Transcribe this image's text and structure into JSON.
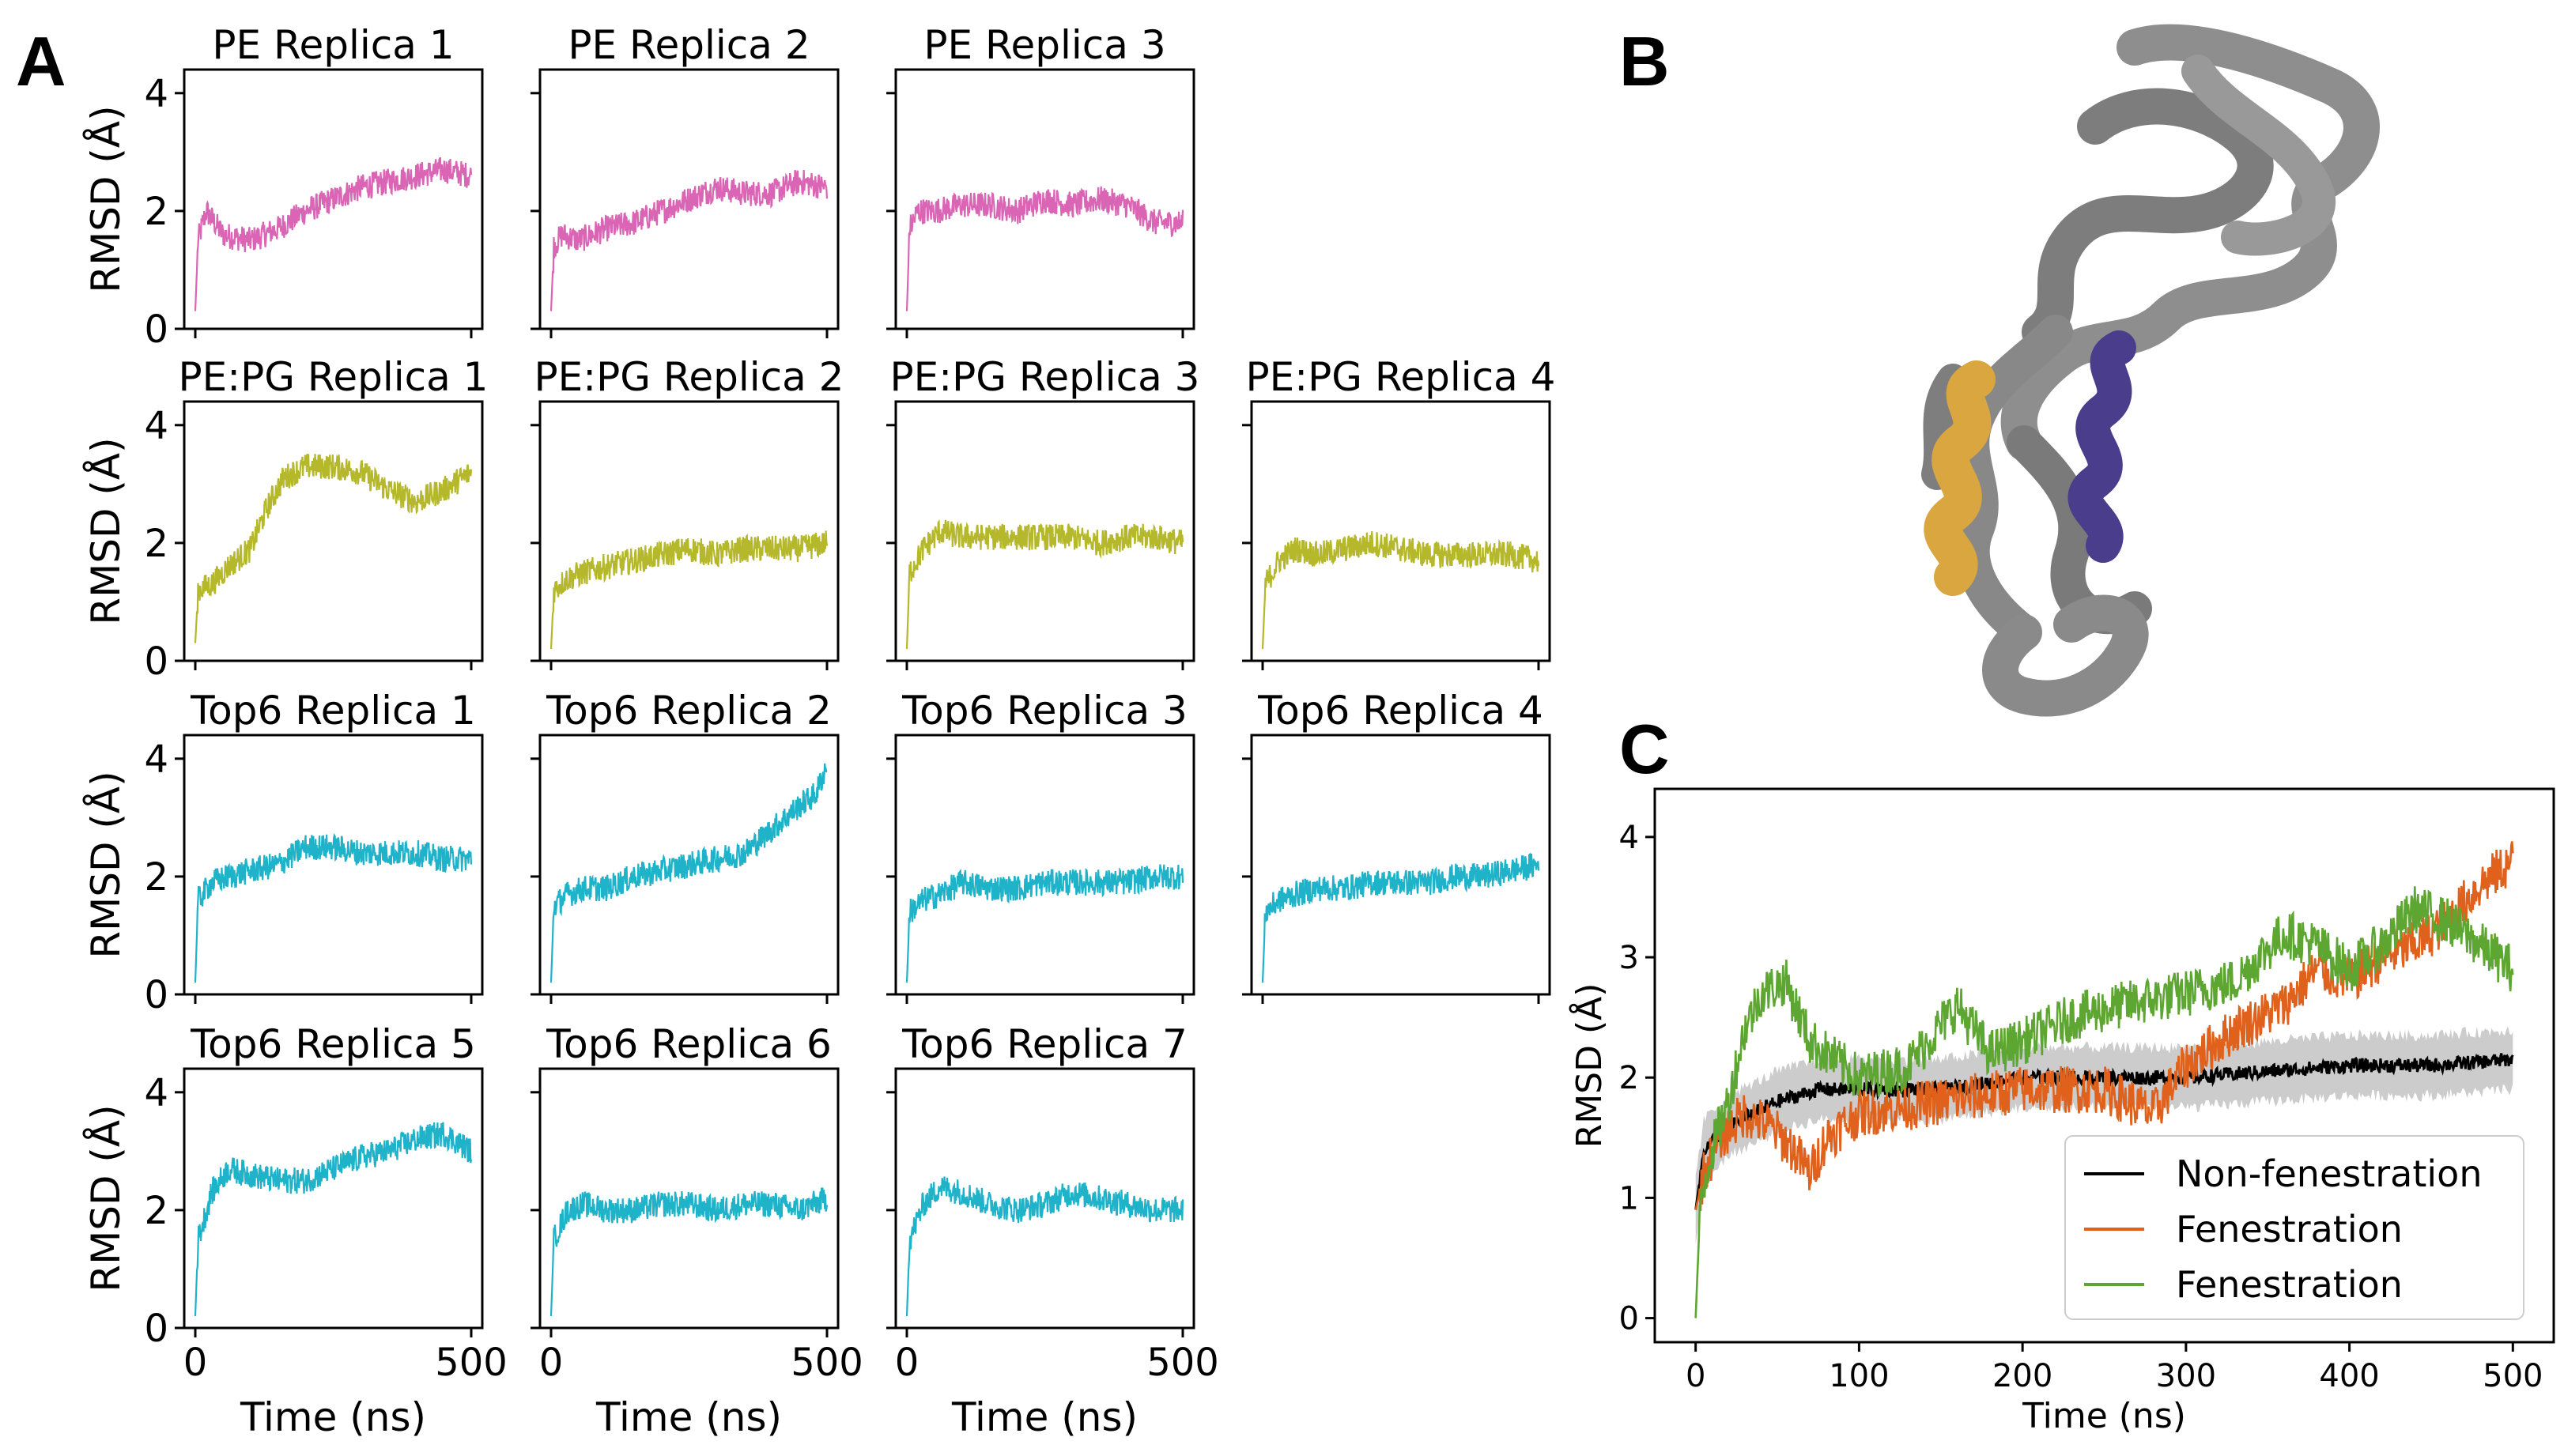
{
  "panel_labels": {
    "a": "A",
    "b": "B",
    "c": "C"
  },
  "colors": {
    "PE": "#d965b4",
    "PEPG": "#b5b82a",
    "Top6": "#1fb3c9",
    "nonfen": "#000000",
    "fen1": "#e0611c",
    "fen2": "#5ea632",
    "band": "#bbbbbb",
    "protein_grey": "#8a8a8a",
    "helix_gold": "#d9a640",
    "helix_purple": "#4a3d8c"
  },
  "panel_b": {
    "icon": "protein-structure-cartoon"
  },
  "chart_data": [
    {
      "type": "line",
      "panel": "A",
      "grid_rows": 4,
      "grid_cols": 4,
      "ylabel": "RMSD (Å)",
      "xlabel": "Time (ns)",
      "xlim": [
        0,
        500
      ],
      "ylim": [
        0,
        4.4
      ],
      "xticks": [
        0,
        500
      ],
      "yticks": [
        0,
        2,
        4
      ],
      "subplots": [
        {
          "title": "PE Replica 1",
          "row": 0,
          "col": 0,
          "group": "PE",
          "series": [
            [
              0,
              0.3
            ],
            [
              5,
              1.5
            ],
            [
              20,
              2.0
            ],
            [
              50,
              1.6
            ],
            [
              100,
              1.5
            ],
            [
              150,
              1.7
            ],
            [
              200,
              2.0
            ],
            [
              250,
              2.2
            ],
            [
              300,
              2.4
            ],
            [
              350,
              2.5
            ],
            [
              400,
              2.6
            ],
            [
              450,
              2.7
            ],
            [
              500,
              2.6
            ]
          ]
        },
        {
          "title": "PE Replica 2",
          "row": 0,
          "col": 1,
          "group": "PE",
          "series": [
            [
              0,
              0.3
            ],
            [
              5,
              1.4
            ],
            [
              20,
              1.6
            ],
            [
              50,
              1.5
            ],
            [
              100,
              1.7
            ],
            [
              150,
              1.8
            ],
            [
              200,
              2.0
            ],
            [
              250,
              2.2
            ],
            [
              300,
              2.4
            ],
            [
              350,
              2.3
            ],
            [
              400,
              2.3
            ],
            [
              450,
              2.5
            ],
            [
              500,
              2.4
            ]
          ]
        },
        {
          "title": "PE Replica 3",
          "row": 0,
          "col": 2,
          "group": "PE",
          "series": [
            [
              0,
              0.3
            ],
            [
              5,
              1.7
            ],
            [
              20,
              2.0
            ],
            [
              50,
              2.0
            ],
            [
              100,
              2.1
            ],
            [
              150,
              2.1
            ],
            [
              200,
              2.0
            ],
            [
              250,
              2.2
            ],
            [
              300,
              2.1
            ],
            [
              350,
              2.2
            ],
            [
              400,
              2.1
            ],
            [
              450,
              1.8
            ],
            [
              500,
              1.8
            ]
          ]
        },
        {
          "title": "PE:PG Replica 1",
          "row": 1,
          "col": 0,
          "group": "PEPG",
          "series": [
            [
              0,
              0.3
            ],
            [
              5,
              1.2
            ],
            [
              30,
              1.3
            ],
            [
              60,
              1.6
            ],
            [
              100,
              1.9
            ],
            [
              130,
              2.6
            ],
            [
              160,
              3.1
            ],
            [
              200,
              3.3
            ],
            [
              250,
              3.3
            ],
            [
              300,
              3.2
            ],
            [
              350,
              2.9
            ],
            [
              400,
              2.7
            ],
            [
              450,
              2.9
            ],
            [
              500,
              3.2
            ]
          ]
        },
        {
          "title": "PE:PG Replica 2",
          "row": 1,
          "col": 1,
          "group": "PEPG",
          "series": [
            [
              0,
              0.2
            ],
            [
              5,
              1.2
            ],
            [
              30,
              1.4
            ],
            [
              60,
              1.5
            ],
            [
              100,
              1.6
            ],
            [
              150,
              1.7
            ],
            [
              200,
              1.8
            ],
            [
              250,
              1.9
            ],
            [
              300,
              1.8
            ],
            [
              350,
              1.9
            ],
            [
              400,
              1.9
            ],
            [
              450,
              1.9
            ],
            [
              500,
              2.0
            ]
          ]
        },
        {
          "title": "PE:PG Replica 3",
          "row": 1,
          "col": 2,
          "group": "PEPG",
          "series": [
            [
              0,
              0.2
            ],
            [
              5,
              1.5
            ],
            [
              30,
              1.9
            ],
            [
              60,
              2.2
            ],
            [
              100,
              2.1
            ],
            [
              150,
              2.1
            ],
            [
              200,
              2.1
            ],
            [
              250,
              2.1
            ],
            [
              300,
              2.1
            ],
            [
              350,
              2.0
            ],
            [
              400,
              2.1
            ],
            [
              450,
              2.1
            ],
            [
              500,
              2.0
            ]
          ]
        },
        {
          "title": "PE:PG Replica 4",
          "row": 1,
          "col": 3,
          "group": "PEPG",
          "series": [
            [
              0,
              0.2
            ],
            [
              5,
              1.3
            ],
            [
              30,
              1.7
            ],
            [
              60,
              1.9
            ],
            [
              100,
              1.8
            ],
            [
              150,
              1.9
            ],
            [
              200,
              2.0
            ],
            [
              250,
              1.9
            ],
            [
              300,
              1.8
            ],
            [
              350,
              1.8
            ],
            [
              400,
              1.8
            ],
            [
              450,
              1.8
            ],
            [
              500,
              1.7
            ]
          ]
        },
        {
          "title": "Top6 Replica 1",
          "row": 2,
          "col": 0,
          "group": "Top6",
          "series": [
            [
              0,
              0.2
            ],
            [
              5,
              1.6
            ],
            [
              30,
              1.9
            ],
            [
              60,
              2.0
            ],
            [
              100,
              2.1
            ],
            [
              150,
              2.2
            ],
            [
              200,
              2.5
            ],
            [
              250,
              2.5
            ],
            [
              300,
              2.4
            ],
            [
              350,
              2.4
            ],
            [
              400,
              2.4
            ],
            [
              450,
              2.3
            ],
            [
              500,
              2.3
            ]
          ]
        },
        {
          "title": "Top6 Replica 2",
          "row": 2,
          "col": 1,
          "group": "Top6",
          "series": [
            [
              0,
              0.2
            ],
            [
              5,
              1.5
            ],
            [
              30,
              1.7
            ],
            [
              60,
              1.8
            ],
            [
              100,
              1.8
            ],
            [
              150,
              2.0
            ],
            [
              200,
              2.1
            ],
            [
              250,
              2.2
            ],
            [
              300,
              2.3
            ],
            [
              350,
              2.4
            ],
            [
              400,
              2.8
            ],
            [
              450,
              3.2
            ],
            [
              480,
              3.4
            ],
            [
              500,
              3.9
            ]
          ]
        },
        {
          "title": "Top6 Replica 3",
          "row": 2,
          "col": 2,
          "group": "Top6",
          "series": [
            [
              0,
              0.2
            ],
            [
              5,
              1.4
            ],
            [
              30,
              1.6
            ],
            [
              60,
              1.7
            ],
            [
              100,
              1.9
            ],
            [
              150,
              1.8
            ],
            [
              200,
              1.8
            ],
            [
              250,
              1.9
            ],
            [
              300,
              1.9
            ],
            [
              350,
              1.9
            ],
            [
              400,
              1.9
            ],
            [
              450,
              2.0
            ],
            [
              500,
              2.0
            ]
          ]
        },
        {
          "title": "Top6 Replica 4",
          "row": 2,
          "col": 3,
          "group": "Top6",
          "series": [
            [
              0,
              0.2
            ],
            [
              5,
              1.4
            ],
            [
              30,
              1.6
            ],
            [
              60,
              1.7
            ],
            [
              100,
              1.8
            ],
            [
              150,
              1.8
            ],
            [
              200,
              1.9
            ],
            [
              250,
              1.9
            ],
            [
              300,
              1.9
            ],
            [
              350,
              2.0
            ],
            [
              400,
              2.0
            ],
            [
              450,
              2.1
            ],
            [
              500,
              2.2
            ]
          ]
        },
        {
          "title": "Top6 Replica 5",
          "row": 3,
          "col": 0,
          "group": "Top6",
          "series": [
            [
              0,
              0.2
            ],
            [
              5,
              1.5
            ],
            [
              30,
              2.3
            ],
            [
              60,
              2.7
            ],
            [
              100,
              2.6
            ],
            [
              150,
              2.5
            ],
            [
              200,
              2.5
            ],
            [
              250,
              2.7
            ],
            [
              300,
              2.9
            ],
            [
              350,
              3.0
            ],
            [
              400,
              3.2
            ],
            [
              450,
              3.3
            ],
            [
              500,
              3.0
            ]
          ]
        },
        {
          "title": "Top6 Replica 6",
          "row": 3,
          "col": 1,
          "group": "Top6",
          "series": [
            [
              0,
              0.2
            ],
            [
              5,
              1.5
            ],
            [
              30,
              2.0
            ],
            [
              60,
              2.1
            ],
            [
              100,
              2.0
            ],
            [
              150,
              2.0
            ],
            [
              200,
              2.1
            ],
            [
              250,
              2.1
            ],
            [
              300,
              2.0
            ],
            [
              350,
              2.1
            ],
            [
              400,
              2.1
            ],
            [
              450,
              2.0
            ],
            [
              500,
              2.2
            ]
          ]
        },
        {
          "title": "Top6 Replica 7",
          "row": 3,
          "col": 2,
          "group": "Top6",
          "series": [
            [
              0,
              0.2
            ],
            [
              5,
              1.5
            ],
            [
              30,
              2.1
            ],
            [
              60,
              2.4
            ],
            [
              100,
              2.3
            ],
            [
              150,
              2.1
            ],
            [
              200,
              2.0
            ],
            [
              250,
              2.1
            ],
            [
              300,
              2.3
            ],
            [
              350,
              2.2
            ],
            [
              400,
              2.1
            ],
            [
              450,
              2.0
            ],
            [
              500,
              2.0
            ]
          ]
        }
      ]
    },
    {
      "type": "line",
      "panel": "C",
      "xlabel": "Time (ns)",
      "ylabel": "RMSD (Å)",
      "xlim": [
        -25,
        525
      ],
      "ylim": [
        -0.2,
        4.4
      ],
      "xticks": [
        0,
        100,
        200,
        300,
        400,
        500
      ],
      "yticks": [
        0,
        1,
        2,
        3,
        4
      ],
      "legend_position": "lower-right",
      "series": [
        {
          "name": "Non-fenestration",
          "key": "nonfen",
          "values": [
            [
              0,
              0.9
            ],
            [
              5,
              1.4
            ],
            [
              20,
              1.6
            ],
            [
              50,
              1.8
            ],
            [
              75,
              1.9
            ],
            [
              100,
              1.9
            ],
            [
              150,
              1.9
            ],
            [
              200,
              2.0
            ],
            [
              250,
              2.0
            ],
            [
              300,
              2.0
            ],
            [
              350,
              2.05
            ],
            [
              400,
              2.1
            ],
            [
              450,
              2.1
            ],
            [
              500,
              2.15
            ]
          ],
          "band": 0.25
        },
        {
          "name": "Fenestration",
          "key": "fen1",
          "values": [
            [
              0,
              0.9
            ],
            [
              5,
              1.2
            ],
            [
              15,
              1.5
            ],
            [
              30,
              1.7
            ],
            [
              45,
              1.6
            ],
            [
              60,
              1.4
            ],
            [
              70,
              1.2
            ],
            [
              80,
              1.5
            ],
            [
              100,
              1.7
            ],
            [
              150,
              1.8
            ],
            [
              200,
              1.9
            ],
            [
              250,
              1.9
            ],
            [
              280,
              1.7
            ],
            [
              300,
              2.1
            ],
            [
              330,
              2.4
            ],
            [
              360,
              2.6
            ],
            [
              380,
              2.9
            ],
            [
              400,
              2.8
            ],
            [
              420,
              3.0
            ],
            [
              440,
              3.1
            ],
            [
              460,
              3.3
            ],
            [
              480,
              3.6
            ],
            [
              500,
              3.8
            ]
          ]
        },
        {
          "name": "Fenestration",
          "key": "fen2",
          "values": [
            [
              0,
              0.0
            ],
            [
              3,
              1.0
            ],
            [
              10,
              1.4
            ],
            [
              20,
              1.8
            ],
            [
              30,
              2.4
            ],
            [
              40,
              2.7
            ],
            [
              55,
              2.8
            ],
            [
              70,
              2.3
            ],
            [
              100,
              2.0
            ],
            [
              130,
              2.1
            ],
            [
              160,
              2.6
            ],
            [
              180,
              2.2
            ],
            [
              200,
              2.3
            ],
            [
              230,
              2.5
            ],
            [
              260,
              2.6
            ],
            [
              300,
              2.7
            ],
            [
              330,
              2.8
            ],
            [
              360,
              3.2
            ],
            [
              380,
              3.1
            ],
            [
              400,
              2.9
            ],
            [
              420,
              3.1
            ],
            [
              440,
              3.4
            ],
            [
              460,
              3.3
            ],
            [
              480,
              3.1
            ],
            [
              500,
              2.9
            ]
          ]
        }
      ]
    }
  ]
}
